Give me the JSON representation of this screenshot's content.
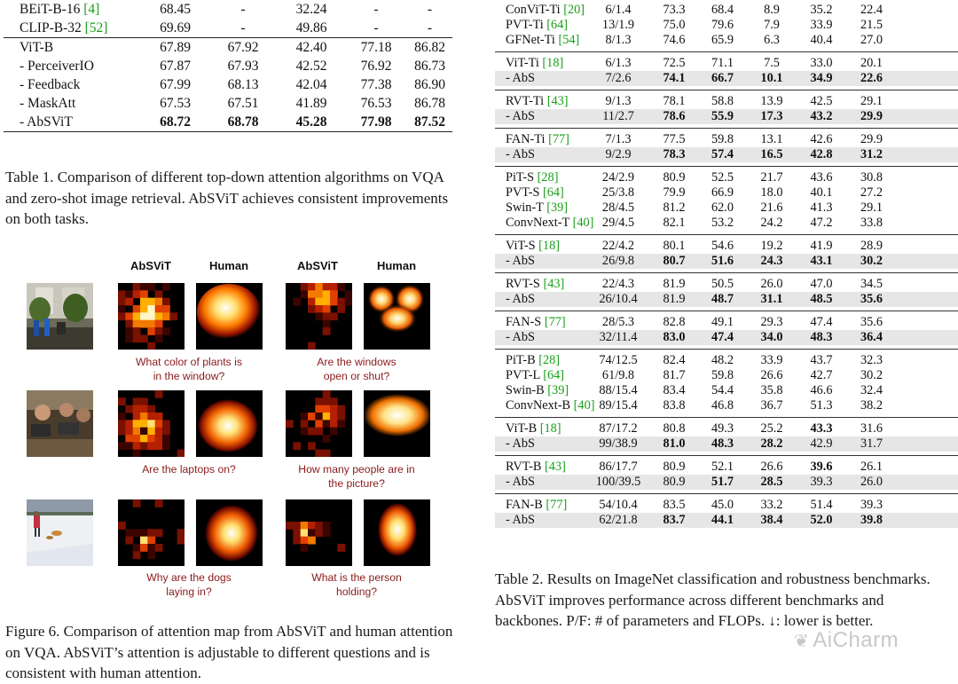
{
  "table1": {
    "rows_top": [
      {
        "name": "BEiT-B-16",
        "ref": "[4]",
        "vals": [
          "68.45",
          "-",
          "32.24",
          "-",
          "-"
        ]
      },
      {
        "name": "CLIP-B-32",
        "ref": "[52]",
        "vals": [
          "69.69",
          "-",
          "49.86",
          "-",
          "-"
        ]
      }
    ],
    "rows_bottom": [
      {
        "name": "ViT-B",
        "ref": "",
        "vals": [
          "67.89",
          "67.92",
          "42.40",
          "77.18",
          "86.82"
        ]
      },
      {
        "name": "- PerceiverIO",
        "ref": "",
        "vals": [
          "67.87",
          "67.93",
          "42.52",
          "76.92",
          "86.73"
        ]
      },
      {
        "name": "- Feedback",
        "ref": "",
        "vals": [
          "67.99",
          "68.13",
          "42.04",
          "77.38",
          "86.90"
        ]
      },
      {
        "name": "- MaskAtt",
        "ref": "",
        "vals": [
          "67.53",
          "67.51",
          "41.89",
          "76.53",
          "86.78"
        ]
      },
      {
        "name": "- AbSViT",
        "ref": "",
        "vals": [
          "68.72",
          "68.78",
          "45.28",
          "77.98",
          "87.52"
        ]
      }
    ],
    "caption": "Table 1. Comparison of different top-down attention algorithms on VQA and zero-shot image retrieval. AbSViT achieves consistent improvements on both tasks."
  },
  "figure6": {
    "col_absvit": "AbSViT",
    "col_human": "Human",
    "questions": [
      [
        "What color of plants is",
        "in the window?"
      ],
      [
        "Are the windows",
        "open or shut?"
      ],
      [
        "Are the laptops on?",
        ""
      ],
      [
        "How many people are in",
        "the picture?"
      ],
      [
        "Why are the dogs",
        "laying in?"
      ],
      [
        "What is the person",
        "holding?"
      ]
    ],
    "caption": "Figure 6. Comparison of attention map from AbSViT and human attention on VQA. AbSViT’s attention is adjustable to different questions and is consistent with human attention."
  },
  "table2": {
    "groups": [
      [
        {
          "name": "ConViT-Ti",
          "ref": "[20]",
          "vals": [
            "6/1.4",
            "73.3",
            "68.4",
            "8.9",
            "35.2",
            "22.4"
          ],
          "abs": false,
          "bold": []
        },
        {
          "name": "PVT-Ti",
          "ref": "[64]",
          "vals": [
            "13/1.9",
            "75.0",
            "79.6",
            "7.9",
            "33.9",
            "21.5"
          ],
          "abs": false,
          "bold": []
        },
        {
          "name": "GFNet-Ti",
          "ref": "[54]",
          "vals": [
            "8/1.3",
            "74.6",
            "65.9",
            "6.3",
            "40.4",
            "27.0"
          ],
          "abs": false,
          "bold": []
        }
      ],
      [
        {
          "name": "ViT-Ti",
          "ref": "[18]",
          "vals": [
            "6/1.3",
            "72.5",
            "71.1",
            "7.5",
            "33.0",
            "20.1"
          ],
          "abs": false,
          "bold": []
        },
        {
          "name": "- AbS",
          "ref": "",
          "vals": [
            "7/2.6",
            "74.1",
            "66.7",
            "10.1",
            "34.9",
            "22.6"
          ],
          "abs": true,
          "bold": [
            1,
            2,
            3,
            4,
            5
          ]
        }
      ],
      [
        {
          "name": "RVT-Ti",
          "ref": "[43]",
          "vals": [
            "9/1.3",
            "78.1",
            "58.8",
            "13.9",
            "42.5",
            "29.1"
          ],
          "abs": false,
          "bold": []
        },
        {
          "name": "- AbS",
          "ref": "",
          "vals": [
            "11/2.7",
            "78.6",
            "55.9",
            "17.3",
            "43.2",
            "29.9"
          ],
          "abs": true,
          "bold": [
            1,
            2,
            3,
            4,
            5
          ]
        }
      ],
      [
        {
          "name": "FAN-Ti",
          "ref": "[77]",
          "vals": [
            "7/1.3",
            "77.5",
            "59.8",
            "13.1",
            "42.6",
            "29.9"
          ],
          "abs": false,
          "bold": []
        },
        {
          "name": "- AbS",
          "ref": "",
          "vals": [
            "9/2.9",
            "78.3",
            "57.4",
            "16.5",
            "42.8",
            "31.2"
          ],
          "abs": true,
          "bold": [
            1,
            2,
            3,
            4,
            5
          ]
        }
      ],
      [
        {
          "name": "PiT-S",
          "ref": "[28]",
          "vals": [
            "24/2.9",
            "80.9",
            "52.5",
            "21.7",
            "43.6",
            "30.8"
          ],
          "abs": false,
          "bold": []
        },
        {
          "name": "PVT-S",
          "ref": "[64]",
          "vals": [
            "25/3.8",
            "79.9",
            "66.9",
            "18.0",
            "40.1",
            "27.2"
          ],
          "abs": false,
          "bold": []
        },
        {
          "name": "Swin-T",
          "ref": "[39]",
          "vals": [
            "28/4.5",
            "81.2",
            "62.0",
            "21.6",
            "41.3",
            "29.1"
          ],
          "abs": false,
          "bold": []
        },
        {
          "name": "ConvNext-T",
          "ref": "[40]",
          "vals": [
            "29/4.5",
            "82.1",
            "53.2",
            "24.2",
            "47.2",
            "33.8"
          ],
          "abs": false,
          "bold": []
        }
      ],
      [
        {
          "name": "ViT-S",
          "ref": "[18]",
          "vals": [
            "22/4.2",
            "80.1",
            "54.6",
            "19.2",
            "41.9",
            "28.9"
          ],
          "abs": false,
          "bold": []
        },
        {
          "name": "- AbS",
          "ref": "",
          "vals": [
            "26/9.8",
            "80.7",
            "51.6",
            "24.3",
            "43.1",
            "30.2"
          ],
          "abs": true,
          "bold": [
            1,
            2,
            3,
            4,
            5
          ]
        }
      ],
      [
        {
          "name": "RVT-S",
          "ref": "[43]",
          "vals": [
            "22/4.3",
            "81.9",
            "50.5",
            "26.0",
            "47.0",
            "34.5"
          ],
          "abs": false,
          "bold": []
        },
        {
          "name": "- AbS",
          "ref": "",
          "vals": [
            "26/10.4",
            "81.9",
            "48.7",
            "31.1",
            "48.5",
            "35.6"
          ],
          "abs": true,
          "bold": [
            2,
            3,
            4,
            5
          ]
        }
      ],
      [
        {
          "name": "FAN-S",
          "ref": "[77]",
          "vals": [
            "28/5.3",
            "82.8",
            "49.1",
            "29.3",
            "47.4",
            "35.6"
          ],
          "abs": false,
          "bold": []
        },
        {
          "name": "- AbS",
          "ref": "",
          "vals": [
            "32/11.4",
            "83.0",
            "47.4",
            "34.0",
            "48.3",
            "36.4"
          ],
          "abs": true,
          "bold": [
            1,
            2,
            3,
            4,
            5
          ]
        }
      ],
      [
        {
          "name": "PiT-B",
          "ref": "[28]",
          "vals": [
            "74/12.5",
            "82.4",
            "48.2",
            "33.9",
            "43.7",
            "32.3"
          ],
          "abs": false,
          "bold": []
        },
        {
          "name": "PVT-L",
          "ref": "[64]",
          "vals": [
            "61/9.8",
            "81.7",
            "59.8",
            "26.6",
            "42.7",
            "30.2"
          ],
          "abs": false,
          "bold": []
        },
        {
          "name": "Swin-B",
          "ref": "[39]",
          "vals": [
            "88/15.4",
            "83.4",
            "54.4",
            "35.8",
            "46.6",
            "32.4"
          ],
          "abs": false,
          "bold": []
        },
        {
          "name": "ConvNext-B",
          "ref": "[40]",
          "vals": [
            "89/15.4",
            "83.8",
            "46.8",
            "36.7",
            "51.3",
            "38.2"
          ],
          "abs": false,
          "bold": []
        }
      ],
      [
        {
          "name": "ViT-B",
          "ref": "[18]",
          "vals": [
            "87/17.2",
            "80.8",
            "49.3",
            "25.2",
            "43.3",
            "31.6"
          ],
          "abs": false,
          "bold": [
            4
          ]
        },
        {
          "name": "- AbS",
          "ref": "",
          "vals": [
            "99/38.9",
            "81.0",
            "48.3",
            "28.2",
            "42.9",
            "31.7"
          ],
          "abs": true,
          "bold": [
            1,
            2,
            3
          ]
        }
      ],
      [
        {
          "name": "RVT-B",
          "ref": "[43]",
          "vals": [
            "86/17.7",
            "80.9",
            "52.1",
            "26.6",
            "39.6",
            "26.1"
          ],
          "abs": false,
          "bold": [
            4
          ]
        },
        {
          "name": "- AbS",
          "ref": "",
          "vals": [
            "100/39.5",
            "80.9",
            "51.7",
            "28.5",
            "39.3",
            "26.0"
          ],
          "abs": true,
          "bold": [
            2,
            3
          ]
        }
      ],
      [
        {
          "name": "FAN-B",
          "ref": "[77]",
          "vals": [
            "54/10.4",
            "83.5",
            "45.0",
            "33.2",
            "51.4",
            "39.3"
          ],
          "abs": false,
          "bold": []
        },
        {
          "name": "- AbS",
          "ref": "",
          "vals": [
            "62/21.8",
            "83.7",
            "44.1",
            "38.4",
            "52.0",
            "39.8"
          ],
          "abs": true,
          "bold": [
            1,
            2,
            3,
            4,
            5
          ]
        }
      ]
    ],
    "caption": "Table 2. Results on ImageNet classification and robustness benchmarks. AbSViT improves performance across different benchmarks and backbones. P/F: # of parameters and FLOPs. ↓: lower is better."
  },
  "watermark": "AiCharm",
  "colors": {
    "ref_green": "#1a9e1a",
    "question_red": "#8b1a1a",
    "abs_row_bg": "#e6e6e6"
  }
}
